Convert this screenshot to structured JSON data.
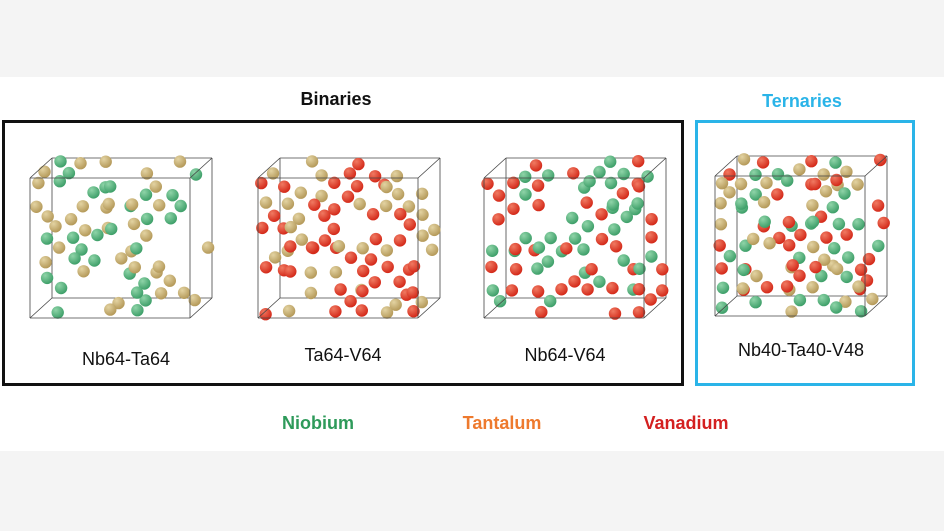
{
  "headings": {
    "binaries": "Binaries",
    "ternaries": "Ternaries"
  },
  "structures": [
    {
      "id": "nb-ta",
      "label": "Nb64-Ta64",
      "elements": [
        "Nb",
        "Ta"
      ]
    },
    {
      "id": "ta-v",
      "label": "Ta64-V64",
      "elements": [
        "Ta",
        "V"
      ]
    },
    {
      "id": "nb-v",
      "label": "Nb64-V64",
      "elements": [
        "Nb",
        "V"
      ]
    },
    {
      "id": "nb-ta-v",
      "label": "Nb40-Ta40-V48",
      "elements": [
        "Nb",
        "Ta",
        "V"
      ]
    }
  ],
  "legend": {
    "niobium": "Niobium",
    "tantalum": "Tantalum",
    "vanadium": "Vanadium"
  },
  "colors": {
    "niobium": "#3fa06a",
    "niobium_light": "#8fd4a8",
    "tantalum": "#b59a5a",
    "tantalum_light": "#e3d3a2",
    "vanadium": "#d42a1a",
    "vanadium_light": "#f07a62",
    "niobium_text": "#2e9a5a",
    "tantalum_text": "#ee7a2e",
    "vanadium_text": "#d42020",
    "ternary_accent": "#2ab4e8"
  }
}
